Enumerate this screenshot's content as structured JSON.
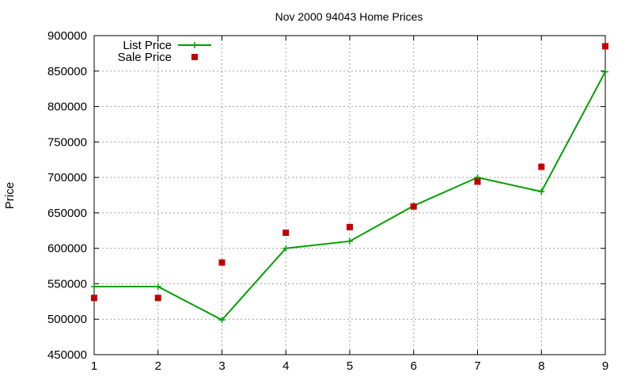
{
  "chart_data": {
    "type": "line",
    "title": "Nov 2000 94043 Home Prices",
    "xlabel": "",
    "ylabel": "Price",
    "xlim": [
      1,
      9
    ],
    "ylim": [
      450000,
      900000
    ],
    "xticks": [
      "1",
      "2",
      "3",
      "4",
      "5",
      "6",
      "7",
      "8",
      "9"
    ],
    "yticks": [
      "450000",
      "500000",
      "550000",
      "600000",
      "650000",
      "700000",
      "750000",
      "800000",
      "850000",
      "900000"
    ],
    "grid": true,
    "legend_position": "top-left",
    "x": [
      1,
      2,
      3,
      4,
      5,
      6,
      7,
      8,
      9
    ],
    "series": [
      {
        "name": "List Price",
        "style": "line-with-plus-markers",
        "color": "#00a000",
        "values": [
          546000,
          546000,
          499000,
          600000,
          610000,
          660000,
          700000,
          680000,
          849000
        ]
      },
      {
        "name": "Sale Price",
        "style": "square-points",
        "color": "#c00000",
        "values": [
          530000,
          530000,
          580000,
          622000,
          630000,
          659000,
          694000,
          715000,
          885000
        ]
      }
    ]
  }
}
